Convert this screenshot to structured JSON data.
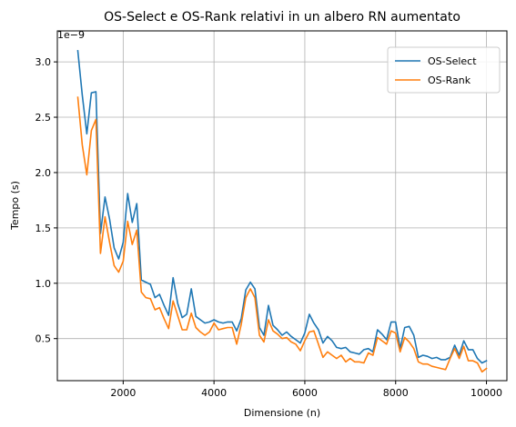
{
  "chart_data": {
    "type": "line",
    "title": "OS-Select e OS-Rank relativi in un albero RN aumentato",
    "xlabel": "Dimensione (n)",
    "ylabel": "Tempo (s)",
    "offset_text": "1e−9",
    "xlim": [
      550,
      10450
    ],
    "ylim": [
      0.12,
      3.28
    ],
    "xticks": [
      2000,
      4000,
      6000,
      8000,
      10000
    ],
    "xtick_labels": [
      "2000",
      "4000",
      "6000",
      "8000",
      "10000"
    ],
    "yticks": [
      0.5,
      1.0,
      1.5,
      2.0,
      2.5,
      3.0
    ],
    "ytick_labels": [
      "0.5",
      "1.0",
      "1.5",
      "2.0",
      "2.5",
      "3.0"
    ],
    "grid": true,
    "legend_position": "top-right",
    "x": [
      1000,
      1100,
      1200,
      1300,
      1400,
      1500,
      1600,
      1700,
      1800,
      1900,
      2000,
      2100,
      2200,
      2300,
      2400,
      2500,
      2600,
      2700,
      2800,
      2900,
      3000,
      3100,
      3200,
      3300,
      3400,
      3500,
      3600,
      3700,
      3800,
      3900,
      4000,
      4100,
      4200,
      4300,
      4400,
      4500,
      4600,
      4700,
      4800,
      4900,
      5000,
      5100,
      5200,
      5300,
      5400,
      5500,
      5600,
      5700,
      5800,
      5900,
      6000,
      6100,
      6200,
      6300,
      6400,
      6500,
      6600,
      6700,
      6800,
      6900,
      7000,
      7100,
      7200,
      7300,
      7400,
      7500,
      7600,
      7700,
      7800,
      7900,
      8000,
      8100,
      8200,
      8300,
      8400,
      8500,
      8600,
      8700,
      8800,
      8900,
      9000,
      9100,
      9200,
      9300,
      9400,
      9500,
      9600,
      9700,
      9800,
      9900,
      10000
    ],
    "series": [
      {
        "name": "OS-Select",
        "color": "#1f77b4",
        "values": [
          3.1,
          2.7,
          2.35,
          2.72,
          2.73,
          1.45,
          1.78,
          1.58,
          1.32,
          1.22,
          1.37,
          1.81,
          1.55,
          1.72,
          1.03,
          1.01,
          0.99,
          0.87,
          0.9,
          0.8,
          0.71,
          1.05,
          0.82,
          0.69,
          0.72,
          0.95,
          0.7,
          0.67,
          0.64,
          0.65,
          0.67,
          0.65,
          0.64,
          0.65,
          0.65,
          0.57,
          0.68,
          0.94,
          1.01,
          0.95,
          0.6,
          0.53,
          0.8,
          0.62,
          0.58,
          0.53,
          0.56,
          0.52,
          0.49,
          0.46,
          0.55,
          0.72,
          0.64,
          0.58,
          0.46,
          0.52,
          0.48,
          0.42,
          0.41,
          0.42,
          0.38,
          0.37,
          0.36,
          0.4,
          0.41,
          0.38,
          0.58,
          0.54,
          0.49,
          0.65,
          0.65,
          0.41,
          0.6,
          0.61,
          0.53,
          0.33,
          0.35,
          0.34,
          0.32,
          0.33,
          0.31,
          0.31,
          0.33,
          0.44,
          0.35,
          0.48,
          0.4,
          0.4,
          0.32,
          0.28,
          0.3
        ]
      },
      {
        "name": "OS-Rank",
        "color": "#ff7f0e",
        "values": [
          2.68,
          2.25,
          1.98,
          2.38,
          2.48,
          1.27,
          1.6,
          1.37,
          1.16,
          1.1,
          1.2,
          1.56,
          1.35,
          1.48,
          0.92,
          0.87,
          0.86,
          0.76,
          0.78,
          0.68,
          0.59,
          0.84,
          0.71,
          0.58,
          0.58,
          0.73,
          0.6,
          0.56,
          0.53,
          0.56,
          0.64,
          0.58,
          0.59,
          0.6,
          0.6,
          0.45,
          0.63,
          0.87,
          0.95,
          0.87,
          0.53,
          0.47,
          0.67,
          0.57,
          0.54,
          0.5,
          0.51,
          0.47,
          0.45,
          0.39,
          0.48,
          0.56,
          0.57,
          0.45,
          0.33,
          0.38,
          0.35,
          0.32,
          0.35,
          0.29,
          0.32,
          0.29,
          0.29,
          0.28,
          0.37,
          0.35,
          0.51,
          0.48,
          0.45,
          0.57,
          0.55,
          0.38,
          0.51,
          0.47,
          0.41,
          0.29,
          0.27,
          0.27,
          0.25,
          0.24,
          0.23,
          0.22,
          0.32,
          0.41,
          0.32,
          0.43,
          0.3,
          0.3,
          0.28,
          0.2,
          0.23
        ]
      }
    ]
  }
}
